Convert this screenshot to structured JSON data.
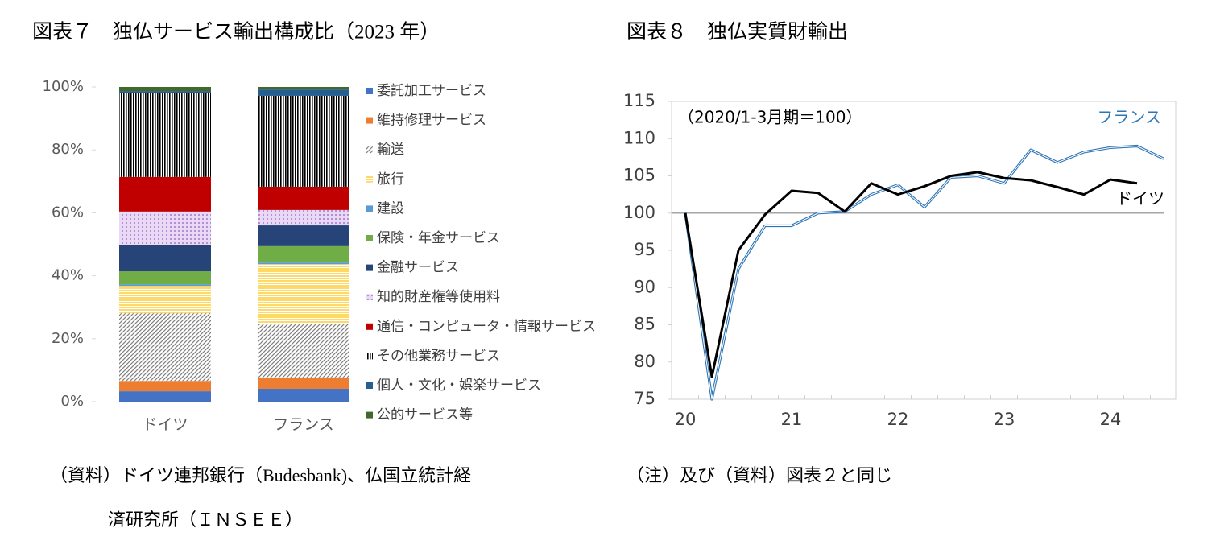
{
  "chart_data": [
    {
      "type": "bar",
      "stacked": true,
      "title": "図表７　独仏サービス輸出構成比（2023 年）",
      "categories": [
        "ドイツ",
        "フランス"
      ],
      "series": [
        {
          "name": "委託加工サービス",
          "color": "#4472c4",
          "values": [
            3.3,
            4.1
          ]
        },
        {
          "name": "維持修理サービス",
          "color": "#ed7d31",
          "values": [
            3.3,
            3.6
          ]
        },
        {
          "name": "輸送",
          "color": "#7f7f7f",
          "pattern": "diagonal",
          "values": [
            21.5,
            17.1
          ]
        },
        {
          "name": "旅行",
          "color": "#ffd966",
          "pattern": "horizontal",
          "values": [
            8.7,
            18.9
          ]
        },
        {
          "name": "建設",
          "color": "#5b9bd5",
          "values": [
            0.5,
            0.5
          ]
        },
        {
          "name": "保険・年金サービス",
          "color": "#70ad47",
          "values": [
            4.1,
            5.2
          ]
        },
        {
          "name": "金融サービス",
          "color": "#264478",
          "values": [
            8.5,
            6.6
          ]
        },
        {
          "name": "知的財産権等使用料",
          "color": "#b48fd4",
          "pattern": "dots",
          "values": [
            10.5,
            4.9
          ]
        },
        {
          "name": "通信・コンピュータ・情報サービス",
          "color": "#c00000",
          "values": [
            11,
            7.4
          ]
        },
        {
          "name": "その他業務サービス",
          "color": "#000000",
          "pattern": "vertical",
          "values": [
            26.6,
            28.9
          ]
        },
        {
          "name": "個人・文化・娯楽サービス",
          "color": "#255e91",
          "values": [
            0.7,
            2
          ]
        },
        {
          "name": "公的サービス等",
          "color": "#43682b",
          "values": [
            1.3,
            0.8
          ]
        }
      ],
      "ylim": [
        0,
        100
      ],
      "yticks": [
        {
          "value": 0,
          "label": "0%"
        },
        {
          "value": 20,
          "label": "20%"
        },
        {
          "value": 40,
          "label": "40%"
        },
        {
          "value": 60,
          "label": "60%"
        },
        {
          "value": 80,
          "label": "80%"
        },
        {
          "value": 100,
          "label": "100%"
        }
      ],
      "source": [
        "（資料）ドイツ連邦銀行（Budesbank)、仏国立統計経",
        "済研究所（ＩＮＳＥＥ）"
      ]
    },
    {
      "type": "line",
      "title": "図表８　独仏実質財輸出",
      "annotation": "（2020/1-3月期＝100）",
      "categories": [
        "20",
        null,
        null,
        null,
        "21",
        null,
        null,
        null,
        "22",
        null,
        null,
        null,
        "23",
        null,
        null,
        null,
        "24",
        null,
        null
      ],
      "series": [
        {
          "name": "フランス",
          "color": "#2e75b6",
          "values": [
            100,
            75,
            92.5,
            98.3,
            98.3,
            100,
            100.2,
            102.5,
            103.8,
            100.8,
            104.8,
            105,
            104,
            108.5,
            106.8,
            108.2,
            108.8,
            109,
            107.3
          ]
        },
        {
          "name": "ドイツ",
          "color": "#000000",
          "values": [
            100,
            78,
            95,
            99.8,
            103,
            102.7,
            100.2,
            104,
            102.5,
            103.6,
            105,
            105.5,
            104.7,
            104.4,
            103.5,
            102.5,
            104.5,
            104,
            null
          ]
        }
      ],
      "ylim": [
        75,
        115
      ],
      "yticks": [
        75,
        80,
        85,
        90,
        95,
        100,
        105,
        110,
        115
      ],
      "reference_line": 100,
      "note": "（注）及び（資料）図表２と同じ"
    }
  ]
}
